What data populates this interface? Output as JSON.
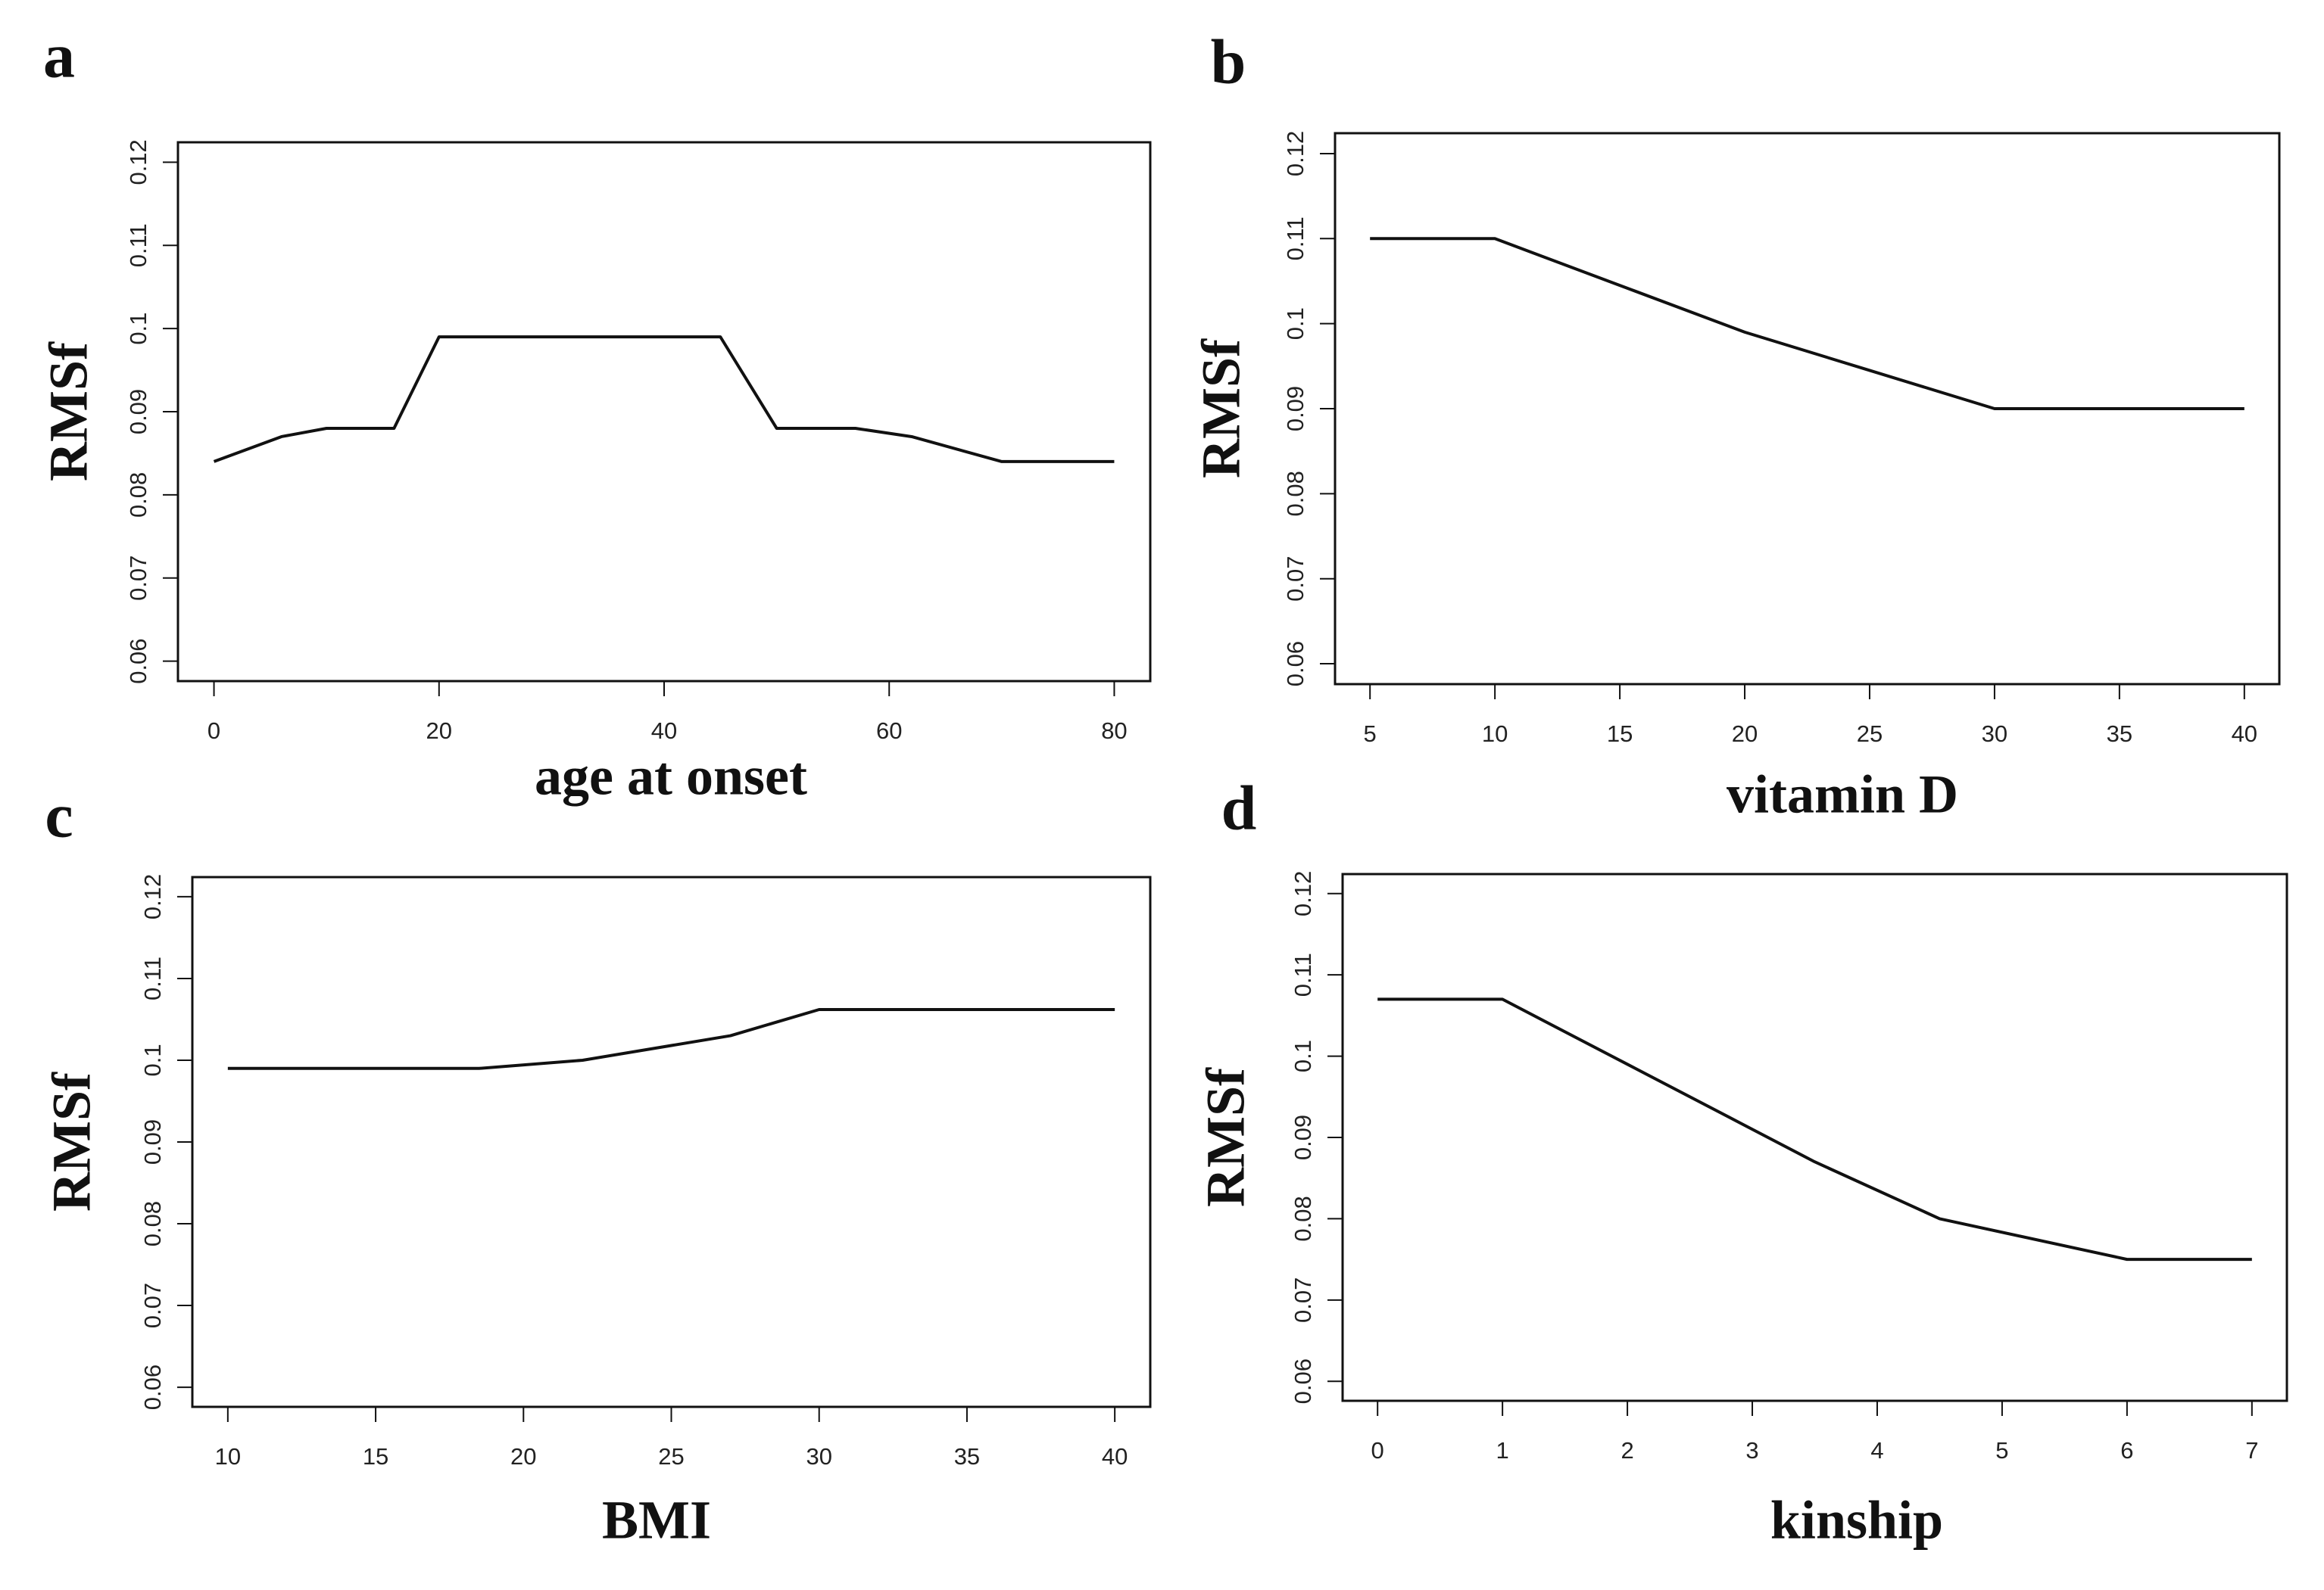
{
  "chart_data": [
    {
      "type": "line",
      "panel": "a",
      "x_label": "age at onset",
      "y_label": "RMSf",
      "color": "#111111",
      "x": [
        0,
        6,
        10,
        16,
        20,
        45,
        50,
        57,
        62,
        70,
        80
      ],
      "values": [
        0.084,
        0.087,
        0.088,
        0.088,
        0.099,
        0.099,
        0.088,
        0.088,
        0.087,
        0.084,
        0.084
      ],
      "xlim": [
        -3.2,
        83.2
      ],
      "xticks": [
        0,
        20,
        40,
        60,
        80
      ],
      "ylim": [
        0.0576,
        0.1224
      ],
      "yticks": [
        0.06,
        0.07,
        0.08,
        0.09,
        0.1,
        0.11,
        0.12
      ]
    },
    {
      "type": "line",
      "panel": "b",
      "x_label": "vitamin D",
      "y_label": "RMSf",
      "color": "#111111",
      "x": [
        5,
        10,
        15,
        20,
        25,
        30,
        40
      ],
      "values": [
        0.11,
        0.11,
        0.1045,
        0.099,
        0.0945,
        0.09,
        0.09
      ],
      "xlim": [
        3.6,
        41.4
      ],
      "xticks": [
        5,
        10,
        15,
        20,
        25,
        30,
        35,
        40
      ],
      "ylim": [
        0.0576,
        0.1224
      ],
      "yticks": [
        0.06,
        0.07,
        0.08,
        0.09,
        0.1,
        0.11,
        0.12
      ]
    },
    {
      "type": "line",
      "panel": "c",
      "x_label": "BMI",
      "y_label": "RMSf",
      "color": "#111111",
      "x": [
        10,
        18.5,
        22,
        27,
        30,
        40
      ],
      "values": [
        0.099,
        0.099,
        0.1,
        0.103,
        0.1062,
        0.1062
      ],
      "xlim": [
        8.8,
        41.2
      ],
      "xticks": [
        10,
        15,
        20,
        25,
        30,
        35,
        40
      ],
      "ylim": [
        0.0576,
        0.1224
      ],
      "yticks": [
        0.06,
        0.07,
        0.08,
        0.09,
        0.1,
        0.11,
        0.12
      ]
    },
    {
      "type": "line",
      "panel": "d",
      "x_label": "kinship",
      "y_label": "RMSf",
      "color": "#111111",
      "x": [
        0,
        1,
        2,
        3,
        3.5,
        4.5,
        6,
        7
      ],
      "values": [
        0.107,
        0.107,
        0.099,
        0.091,
        0.087,
        0.08,
        0.075,
        0.075
      ],
      "xlim": [
        -0.28,
        7.28
      ],
      "xticks": [
        0,
        1,
        2,
        3,
        4,
        5,
        6,
        7
      ],
      "ylim": [
        0.0576,
        0.1224
      ],
      "yticks": [
        0.06,
        0.07,
        0.08,
        0.09,
        0.1,
        0.11,
        0.12
      ]
    }
  ]
}
